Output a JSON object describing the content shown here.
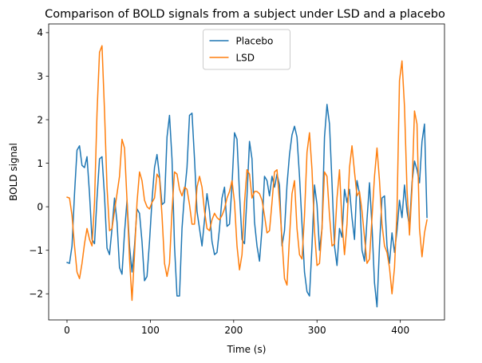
{
  "chart_data": {
    "type": "line",
    "title": "Comparison of BOLD signals from a subject under LSD and a placebo",
    "xlabel": "Time (s)",
    "ylabel": "BOLD signal",
    "xlim": [
      -22,
      453
    ],
    "ylim": [
      -2.6,
      4.2
    ],
    "xticks": [
      0,
      100,
      200,
      300,
      400
    ],
    "yticks": [
      -2,
      -1,
      0,
      1,
      2,
      3,
      4
    ],
    "grid": false,
    "legend_position": "upper center",
    "series": [
      {
        "name": "Placebo",
        "color": "#1f77b4",
        "points": [
          [
            0,
            -1.28
          ],
          [
            3,
            -1.3
          ],
          [
            6,
            -0.9
          ],
          [
            9,
            0.3
          ],
          [
            12,
            1.3
          ],
          [
            15,
            1.4
          ],
          [
            18,
            0.95
          ],
          [
            21,
            0.9
          ],
          [
            24,
            1.15
          ],
          [
            27,
            0.3
          ],
          [
            30,
            -0.75
          ],
          [
            33,
            -0.85
          ],
          [
            36,
            0.2
          ],
          [
            39,
            1.1
          ],
          [
            42,
            1.15
          ],
          [
            45,
            0.25
          ],
          [
            48,
            -0.95
          ],
          [
            51,
            -1.1
          ],
          [
            54,
            -0.5
          ],
          [
            57,
            0.2
          ],
          [
            60,
            -0.35
          ],
          [
            63,
            -1.4
          ],
          [
            66,
            -1.55
          ],
          [
            69,
            -0.6
          ],
          [
            72,
            0.15
          ],
          [
            75,
            -0.9
          ],
          [
            78,
            -1.5
          ],
          [
            81,
            -0.9
          ],
          [
            84,
            -0.05
          ],
          [
            87,
            -0.15
          ],
          [
            90,
            -0.8
          ],
          [
            93,
            -1.7
          ],
          [
            96,
            -1.6
          ],
          [
            99,
            -0.8
          ],
          [
            102,
            0.15
          ],
          [
            105,
            0.9
          ],
          [
            108,
            1.2
          ],
          [
            111,
            0.7
          ],
          [
            114,
            0.05
          ],
          [
            117,
            0.1
          ],
          [
            120,
            1.6
          ],
          [
            123,
            2.1
          ],
          [
            126,
            1.1
          ],
          [
            129,
            -0.9
          ],
          [
            132,
            -2.05
          ],
          [
            135,
            -2.05
          ],
          [
            138,
            -0.5
          ],
          [
            141,
            0.3
          ],
          [
            144,
            0.9
          ],
          [
            147,
            2.1
          ],
          [
            150,
            2.15
          ],
          [
            153,
            1.1
          ],
          [
            156,
            -0.1
          ],
          [
            159,
            -0.5
          ],
          [
            162,
            -0.9
          ],
          [
            165,
            -0.3
          ],
          [
            168,
            0.3
          ],
          [
            171,
            -0.1
          ],
          [
            174,
            -0.8
          ],
          [
            177,
            -1.1
          ],
          [
            180,
            -1.05
          ],
          [
            183,
            -0.5
          ],
          [
            186,
            0.2
          ],
          [
            189,
            0.45
          ],
          [
            192,
            -0.45
          ],
          [
            195,
            -0.4
          ],
          [
            198,
            0.5
          ],
          [
            201,
            1.7
          ],
          [
            204,
            1.55
          ],
          [
            207,
            0.3
          ],
          [
            210,
            -0.75
          ],
          [
            213,
            -0.85
          ],
          [
            216,
            0.25
          ],
          [
            219,
            1.5
          ],
          [
            222,
            1.1
          ],
          [
            225,
            -0.35
          ],
          [
            228,
            -0.9
          ],
          [
            231,
            -1.25
          ],
          [
            234,
            -0.5
          ],
          [
            237,
            0.7
          ],
          [
            240,
            0.6
          ],
          [
            243,
            0.25
          ],
          [
            246,
            0.7
          ],
          [
            249,
            0.45
          ],
          [
            252,
            0.75
          ],
          [
            255,
            0.5
          ],
          [
            258,
            -0.9
          ],
          [
            261,
            -0.55
          ],
          [
            264,
            0.5
          ],
          [
            267,
            1.2
          ],
          [
            270,
            1.65
          ],
          [
            273,
            1.85
          ],
          [
            276,
            1.6
          ],
          [
            279,
            0.7
          ],
          [
            282,
            -0.4
          ],
          [
            285,
            -1.5
          ],
          [
            288,
            -1.95
          ],
          [
            291,
            -2.05
          ],
          [
            294,
            -0.9
          ],
          [
            297,
            0.5
          ],
          [
            300,
            0.05
          ],
          [
            303,
            -1.0
          ],
          [
            306,
            -0.5
          ],
          [
            309,
            1.6
          ],
          [
            312,
            2.35
          ],
          [
            315,
            1.9
          ],
          [
            318,
            0.55
          ],
          [
            321,
            -0.9
          ],
          [
            324,
            -1.35
          ],
          [
            327,
            -0.5
          ],
          [
            330,
            -0.7
          ],
          [
            333,
            0.4
          ],
          [
            336,
            0.1
          ],
          [
            339,
            0.4
          ],
          [
            342,
            -0.25
          ],
          [
            345,
            -0.75
          ],
          [
            348,
            0.6
          ],
          [
            351,
            0.3
          ],
          [
            354,
            -1.0
          ],
          [
            357,
            -1.25
          ],
          [
            360,
            -0.3
          ],
          [
            363,
            0.55
          ],
          [
            366,
            -0.45
          ],
          [
            369,
            -1.75
          ],
          [
            372,
            -2.3
          ],
          [
            375,
            -0.9
          ],
          [
            378,
            0.2
          ],
          [
            381,
            0.25
          ],
          [
            384,
            -0.9
          ],
          [
            387,
            -1.3
          ],
          [
            390,
            -0.6
          ],
          [
            393,
            -1.05
          ],
          [
            396,
            -0.55
          ],
          [
            399,
            0.15
          ],
          [
            402,
            -0.25
          ],
          [
            405,
            0.5
          ],
          [
            408,
            -0.1
          ],
          [
            411,
            -0.45
          ],
          [
            414,
            0.55
          ],
          [
            417,
            1.05
          ],
          [
            420,
            0.85
          ],
          [
            423,
            0.55
          ],
          [
            426,
            1.5
          ],
          [
            429,
            1.9
          ],
          [
            432,
            -0.25
          ]
        ]
      },
      {
        "name": "LSD",
        "color": "#ff7f0e",
        "points": [
          [
            0,
            0.22
          ],
          [
            3,
            0.2
          ],
          [
            6,
            -0.2
          ],
          [
            9,
            -0.9
          ],
          [
            12,
            -1.5
          ],
          [
            15,
            -1.65
          ],
          [
            18,
            -1.3
          ],
          [
            21,
            -0.85
          ],
          [
            24,
            -0.5
          ],
          [
            27,
            -0.75
          ],
          [
            30,
            -0.9
          ],
          [
            33,
            0.1
          ],
          [
            36,
            2.15
          ],
          [
            39,
            3.55
          ],
          [
            42,
            3.7
          ],
          [
            45,
            2.2
          ],
          [
            48,
            0.45
          ],
          [
            51,
            -0.55
          ],
          [
            54,
            -0.5
          ],
          [
            57,
            -0.1
          ],
          [
            60,
            0.3
          ],
          [
            63,
            0.7
          ],
          [
            66,
            1.55
          ],
          [
            69,
            1.35
          ],
          [
            72,
            0.15
          ],
          [
            75,
            -1.2
          ],
          [
            78,
            -2.15
          ],
          [
            81,
            -1.1
          ],
          [
            84,
            0.1
          ],
          [
            87,
            0.8
          ],
          [
            90,
            0.6
          ],
          [
            93,
            0.15
          ],
          [
            96,
            0.0
          ],
          [
            99,
            -0.05
          ],
          [
            102,
            0.1
          ],
          [
            105,
            0.2
          ],
          [
            108,
            0.75
          ],
          [
            111,
            0.65
          ],
          [
            114,
            -0.2
          ],
          [
            117,
            -1.3
          ],
          [
            120,
            -1.6
          ],
          [
            123,
            -1.3
          ],
          [
            126,
            -0.1
          ],
          [
            129,
            0.8
          ],
          [
            132,
            0.75
          ],
          [
            135,
            0.4
          ],
          [
            138,
            0.25
          ],
          [
            141,
            0.45
          ],
          [
            144,
            0.4
          ],
          [
            147,
            0.05
          ],
          [
            150,
            -0.4
          ],
          [
            153,
            -0.4
          ],
          [
            156,
            0.45
          ],
          [
            159,
            0.7
          ],
          [
            162,
            0.45
          ],
          [
            165,
            -0.1
          ],
          [
            168,
            -0.5
          ],
          [
            171,
            -0.55
          ],
          [
            174,
            -0.3
          ],
          [
            177,
            -0.15
          ],
          [
            180,
            -0.25
          ],
          [
            183,
            -0.3
          ],
          [
            186,
            -0.2
          ],
          [
            189,
            -0.05
          ],
          [
            192,
            0.2
          ],
          [
            195,
            0.35
          ],
          [
            198,
            0.6
          ],
          [
            201,
            0.1
          ],
          [
            204,
            -0.9
          ],
          [
            207,
            -1.45
          ],
          [
            210,
            -1.1
          ],
          [
            213,
            0.1
          ],
          [
            216,
            0.85
          ],
          [
            219,
            0.75
          ],
          [
            222,
            0.2
          ],
          [
            225,
            0.35
          ],
          [
            228,
            0.35
          ],
          [
            231,
            0.3
          ],
          [
            234,
            0.15
          ],
          [
            237,
            -0.2
          ],
          [
            240,
            -0.6
          ],
          [
            243,
            -0.55
          ],
          [
            246,
            0.1
          ],
          [
            249,
            0.8
          ],
          [
            252,
            0.85
          ],
          [
            255,
            0.1
          ],
          [
            258,
            -0.75
          ],
          [
            261,
            -1.65
          ],
          [
            264,
            -1.8
          ],
          [
            267,
            -0.7
          ],
          [
            270,
            0.3
          ],
          [
            273,
            0.6
          ],
          [
            276,
            -0.5
          ],
          [
            279,
            -1.1
          ],
          [
            282,
            -1.2
          ],
          [
            285,
            -0.2
          ],
          [
            288,
            1.25
          ],
          [
            291,
            1.7
          ],
          [
            294,
            0.85
          ],
          [
            297,
            -0.55
          ],
          [
            300,
            -1.35
          ],
          [
            303,
            -1.3
          ],
          [
            306,
            -0.5
          ],
          [
            309,
            0.8
          ],
          [
            312,
            0.7
          ],
          [
            315,
            -0.2
          ],
          [
            318,
            -0.9
          ],
          [
            321,
            -0.85
          ],
          [
            324,
            0.2
          ],
          [
            327,
            0.85
          ],
          [
            330,
            -0.35
          ],
          [
            333,
            -1.1
          ],
          [
            336,
            -0.4
          ],
          [
            339,
            0.9
          ],
          [
            342,
            1.4
          ],
          [
            345,
            0.8
          ],
          [
            348,
            0.25
          ],
          [
            351,
            0.35
          ],
          [
            354,
            -0.1
          ],
          [
            357,
            -0.7
          ],
          [
            360,
            -1.3
          ],
          [
            363,
            -1.2
          ],
          [
            366,
            -0.25
          ],
          [
            369,
            0.7
          ],
          [
            372,
            1.35
          ],
          [
            375,
            0.6
          ],
          [
            378,
            -0.4
          ],
          [
            381,
            -0.9
          ],
          [
            384,
            -1.05
          ],
          [
            387,
            -1.4
          ],
          [
            390,
            -2.0
          ],
          [
            393,
            -1.4
          ],
          [
            396,
            -0.1
          ],
          [
            399,
            2.9
          ],
          [
            402,
            3.35
          ],
          [
            405,
            2.3
          ],
          [
            408,
            0.4
          ],
          [
            411,
            -0.65
          ],
          [
            414,
            0.4
          ],
          [
            417,
            2.2
          ],
          [
            420,
            1.9
          ],
          [
            423,
            -0.5
          ],
          [
            426,
            -1.15
          ],
          [
            429,
            -0.6
          ],
          [
            432,
            -0.3
          ]
        ]
      }
    ]
  }
}
